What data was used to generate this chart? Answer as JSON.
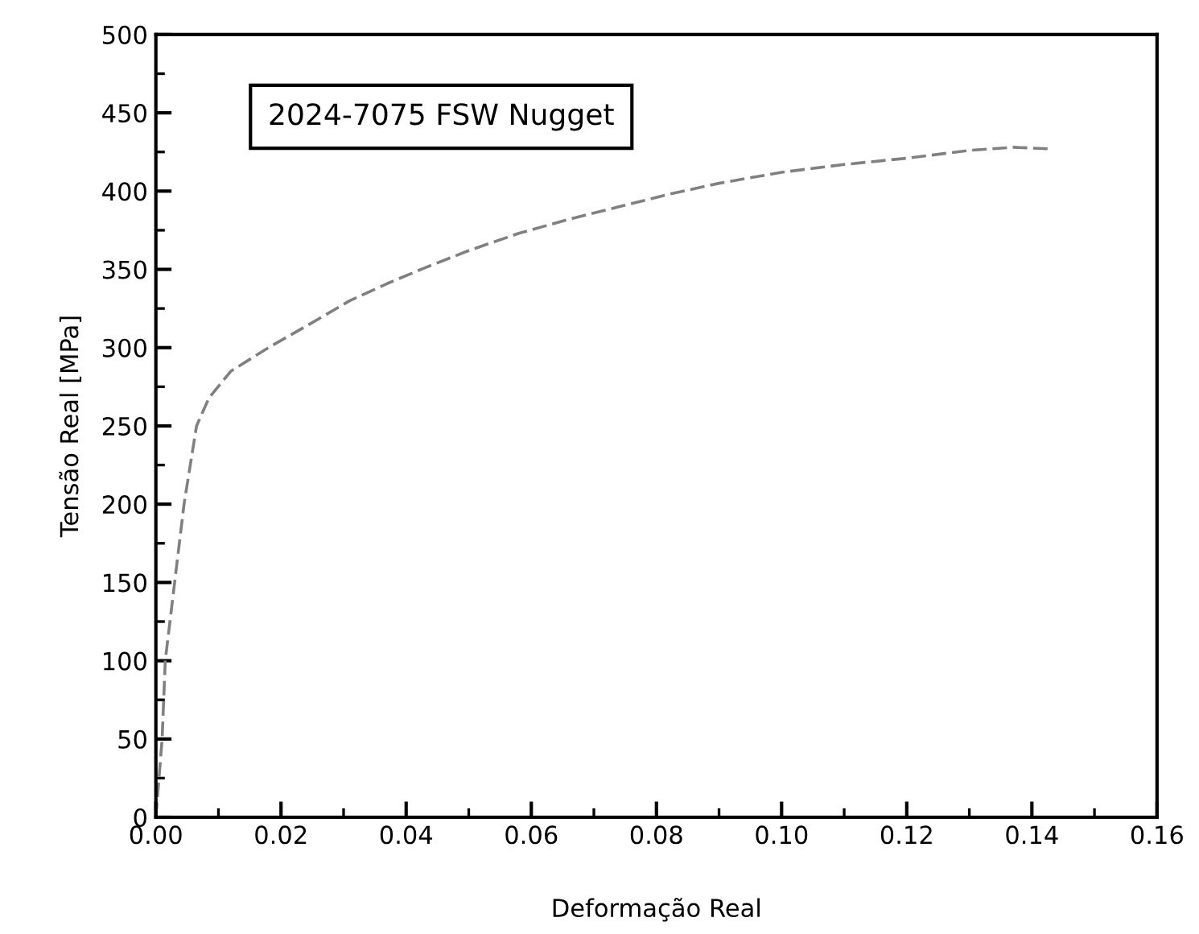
{
  "chart_data": {
    "type": "line",
    "title": "2024-7075 FSW Nugget",
    "xlabel": "Deformação Real",
    "ylabel": "Tensão Real [MPa]",
    "series": [
      {
        "color": "#808080",
        "x": [
          0.0,
          0.001,
          0.0015,
          0.003,
          0.0045,
          0.0065,
          0.0085,
          0.012,
          0.018,
          0.025,
          0.031,
          0.037,
          0.043,
          0.05,
          0.058,
          0.066,
          0.074,
          0.082,
          0.09,
          0.1,
          0.11,
          0.12,
          0.13,
          0.137,
          0.143
        ],
        "values": [
          0,
          50,
          100,
          150,
          200,
          250,
          268,
          285,
          300,
          316,
          330,
          341,
          351,
          362,
          373,
          382,
          390,
          398,
          405,
          412,
          417,
          421,
          426,
          428,
          427
        ]
      }
    ],
    "xlim": [
      0,
      0.16
    ],
    "ylim": [
      0,
      500
    ],
    "xticks": [
      {
        "value": 0,
        "label": "0.00"
      },
      {
        "value": 0.02,
        "label": "0.02"
      },
      {
        "value": 0.04,
        "label": "0.04"
      },
      {
        "value": 0.06,
        "label": "0.06"
      },
      {
        "value": 0.08,
        "label": "0.08"
      },
      {
        "value": 0.1,
        "label": "0.10"
      },
      {
        "value": 0.12,
        "label": "0.12"
      },
      {
        "value": 0.14,
        "label": "0.14"
      },
      {
        "value": 0.16,
        "label": "0.16"
      }
    ],
    "yticks": [
      0,
      50,
      100,
      150,
      200,
      250,
      300,
      350,
      400,
      450,
      500
    ],
    "grid": false,
    "marker": "none",
    "line_style": "dashed"
  }
}
